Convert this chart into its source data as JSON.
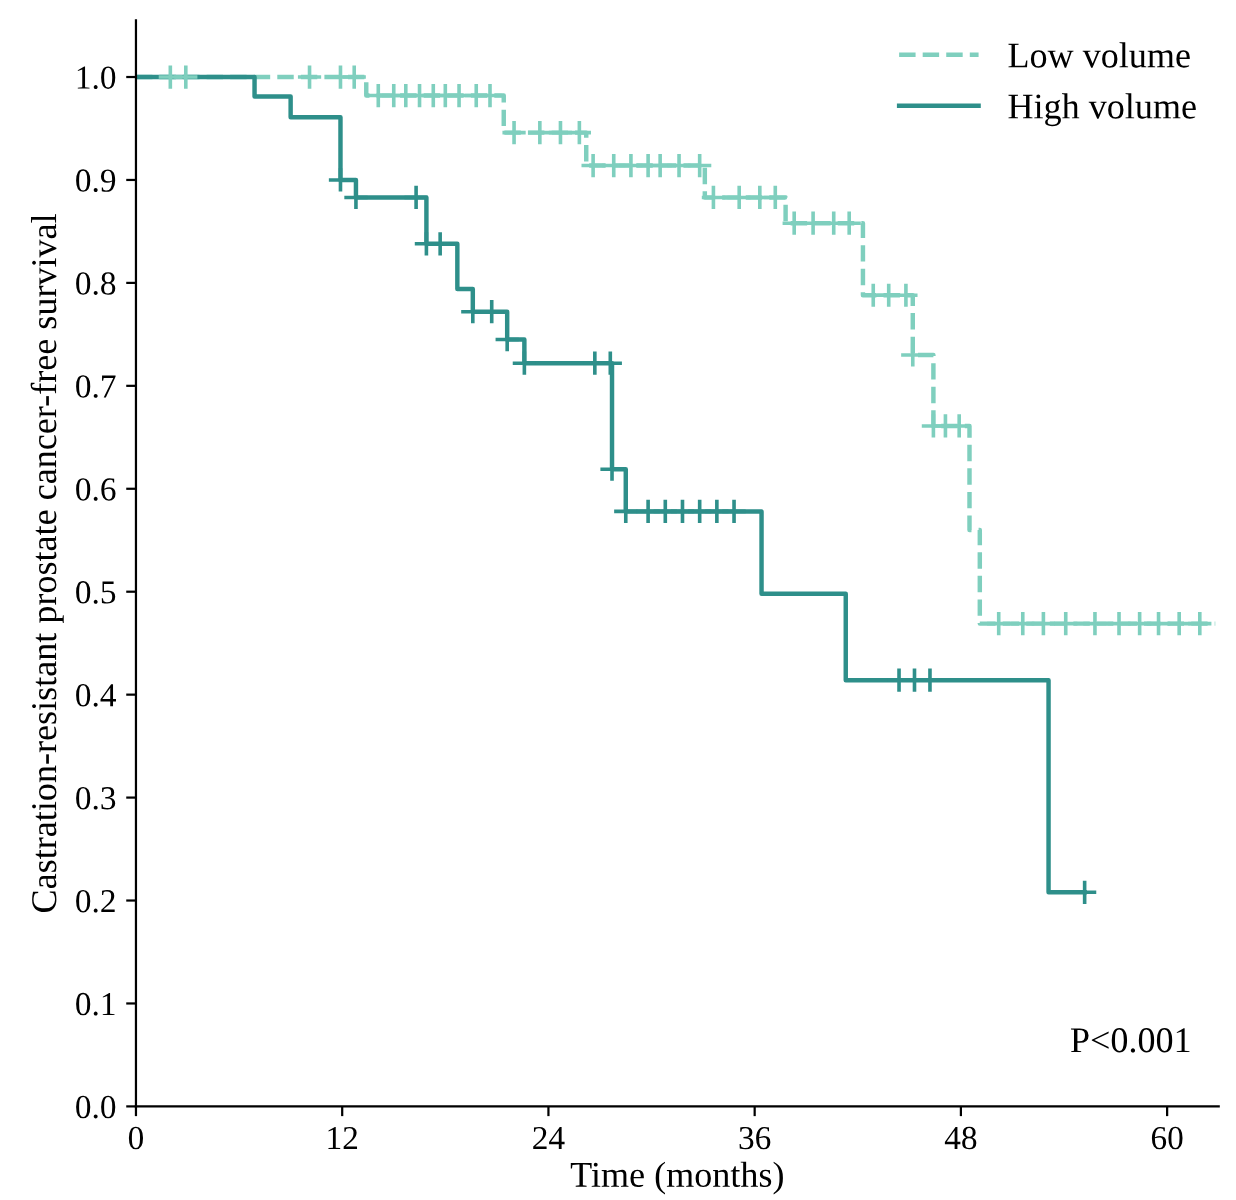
{
  "chart_data": {
    "type": "step",
    "xlabel": "Time (months)",
    "ylabel": "Castration-resistant prostate cancer-free survival",
    "xlim": [
      0,
      63
    ],
    "ylim": [
      0,
      1.055
    ],
    "xticks": [
      0,
      12,
      24,
      36,
      48,
      60
    ],
    "yticks": [
      {
        "value": 0,
        "label": "0.0"
      },
      0.1,
      0.2,
      0.3,
      0.4,
      0.5,
      0.6,
      0.7,
      0.8,
      0.9,
      {
        "value": 1,
        "label": "1.0"
      }
    ],
    "grid": false,
    "legend": "top right",
    "annotations": [
      "P<0.001"
    ],
    "series": [
      {
        "name": "Low volume",
        "line_style": "dashed",
        "color": "#7fcfbe",
        "x": [
          0,
          13.4,
          21.4,
          26.2,
          33.1,
          37.8,
          42.3,
          45.2,
          46.4,
          48.5,
          49.1,
          62.8
        ],
        "values": [
          1.0,
          0.982,
          0.946,
          0.914,
          0.883,
          0.858,
          0.788,
          0.73,
          0.661,
          0.56,
          0.469,
          0.469
        ]
      },
      {
        "name": "High volume",
        "line_style": "solid",
        "color": "#2e8f8a",
        "x": [
          0,
          6.9,
          9.0,
          11.9,
          12.8,
          16.9,
          18.7,
          19.6,
          21.6,
          22.6,
          27.7,
          28.5,
          36.4,
          41.3,
          53.1,
          55.2
        ],
        "values": [
          1.0,
          0.981,
          0.961,
          0.9,
          0.883,
          0.838,
          0.794,
          0.772,
          0.745,
          0.722,
          0.619,
          0.578,
          0.498,
          0.414,
          0.208,
          0.208
        ]
      },
      {
        "type": "scatter",
        "marker": "cross",
        "color": "#7fcfbe",
        "x": [
          2.0,
          2.9,
          10.1,
          11.9,
          12.7,
          14.1,
          15.0,
          15.7,
          16.5,
          17.3,
          18.0,
          18.8,
          19.8,
          20.6,
          22.0,
          23.5,
          24.7,
          25.8,
          26.6,
          27.8,
          28.8,
          29.8,
          30.5,
          31.6,
          32.8,
          33.6,
          35.1,
          36.3,
          37.2,
          38.3,
          39.4,
          40.6,
          41.5,
          42.9,
          43.8,
          44.8,
          45.2,
          46.4,
          47.1,
          47.9,
          50.2,
          51.6,
          52.8,
          54.1,
          55.8,
          57.2,
          58.4,
          59.5,
          60.7,
          61.9
        ],
        "values": [
          1.0,
          1.0,
          1.0,
          1.0,
          1.0,
          0.982,
          0.982,
          0.982,
          0.982,
          0.982,
          0.982,
          0.982,
          0.982,
          0.982,
          0.946,
          0.946,
          0.946,
          0.946,
          0.914,
          0.914,
          0.914,
          0.914,
          0.914,
          0.914,
          0.914,
          0.883,
          0.883,
          0.883,
          0.883,
          0.858,
          0.858,
          0.858,
          0.858,
          0.788,
          0.788,
          0.788,
          0.73,
          0.661,
          0.661,
          0.661,
          0.469,
          0.469,
          0.469,
          0.469,
          0.469,
          0.469,
          0.469,
          0.469,
          0.469,
          0.469
        ]
      },
      {
        "type": "scatter",
        "marker": "cross",
        "color": "#2e8f8a",
        "x": [
          11.9,
          12.8,
          16.3,
          16.9,
          17.7,
          19.6,
          20.7,
          21.6,
          22.6,
          26.7,
          27.6,
          27.7,
          28.5,
          29.8,
          30.8,
          31.8,
          32.8,
          33.8,
          34.8,
          44.4,
          45.3,
          46.2,
          55.2
        ],
        "values": [
          0.9,
          0.883,
          0.883,
          0.838,
          0.838,
          0.772,
          0.772,
          0.745,
          0.722,
          0.722,
          0.722,
          0.619,
          0.578,
          0.578,
          0.578,
          0.578,
          0.578,
          0.578,
          0.578,
          0.414,
          0.414,
          0.414,
          0.208
        ]
      }
    ]
  }
}
